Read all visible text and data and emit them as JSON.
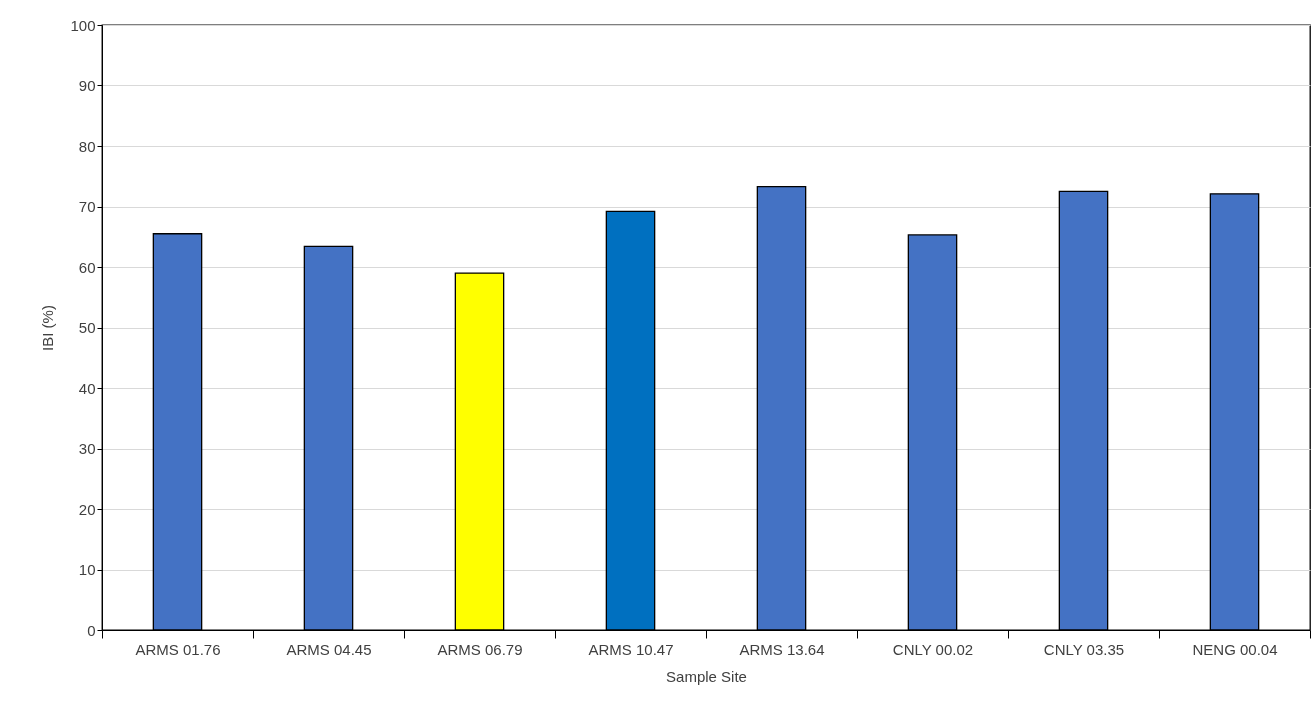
{
  "chart_data": {
    "type": "bar",
    "xlabel": "Sample Site",
    "ylabel": "IBI (%)",
    "categories": [
      "ARMS 01.76",
      "ARMS 04.45",
      "ARMS 06.79",
      "ARMS 10.47",
      "ARMS 13.64",
      "CNLY 00.02",
      "CNLY 03.35",
      "NENG 00.04"
    ],
    "values": [
      65.5,
      63.4,
      59.0,
      69.2,
      73.3,
      65.3,
      72.5,
      72.1
    ],
    "colors": [
      "#4472c4",
      "#4472c4",
      "#ffff00",
      "#0070c0",
      "#4472c4",
      "#4472c4",
      "#4472c4",
      "#4472c4"
    ],
    "ylim": [
      0,
      100
    ],
    "yticks": [
      0,
      10,
      20,
      30,
      40,
      50,
      60,
      70,
      80,
      90,
      100
    ],
    "grid": "y"
  }
}
